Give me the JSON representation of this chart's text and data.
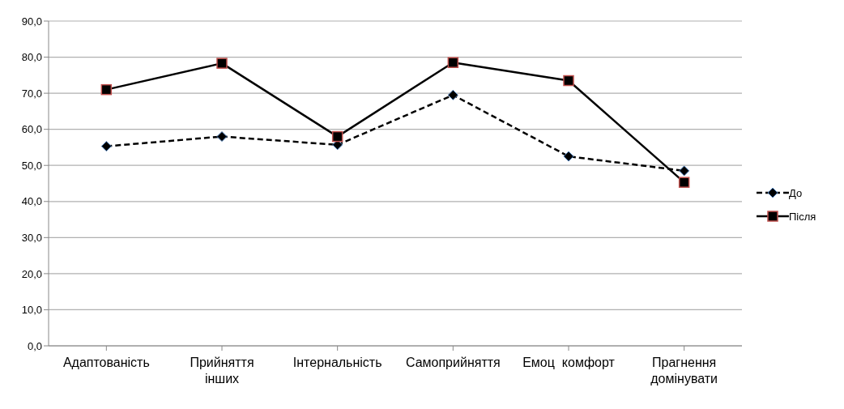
{
  "chart_data": {
    "type": "line",
    "categories": [
      "Адаптованість",
      "Прийняття інших",
      "Інтернальність",
      "Самоприйняття",
      "Емоц  комфорт",
      "Прагнення домінувати"
    ],
    "series": [
      {
        "name": "До",
        "color": "#000000",
        "values": [
          55.3,
          58.0,
          55.7,
          69.5,
          52.5,
          48.5
        ],
        "marker": "diamond",
        "line_style": "dashed"
      },
      {
        "name": "Після",
        "color": "#000000",
        "values": [
          71.0,
          78.3,
          58.0,
          78.5,
          73.5,
          45.3
        ],
        "marker": "square",
        "line_style": "solid"
      }
    ],
    "ylim": [
      0,
      90
    ],
    "yticks": [
      {
        "value": 0,
        "label": "0,0"
      },
      {
        "value": 10,
        "label": "10,0"
      },
      {
        "value": 20,
        "label": "20,0"
      },
      {
        "value": 30,
        "label": "30,0"
      },
      {
        "value": 40,
        "label": "40,0"
      },
      {
        "value": 50,
        "label": "50,0"
      },
      {
        "value": 60,
        "label": "60,0"
      },
      {
        "value": 70,
        "label": "70,0"
      },
      {
        "value": 80,
        "label": "80,0"
      },
      {
        "value": 90,
        "label": "90,0"
      }
    ],
    "grid": "y",
    "legend": "right"
  }
}
